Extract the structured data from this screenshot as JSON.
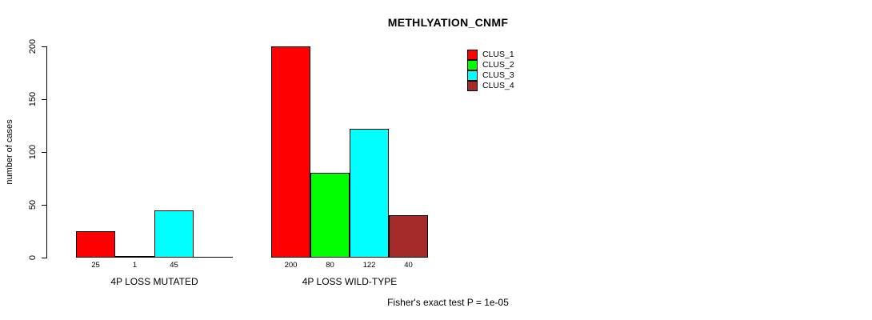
{
  "chart_data": {
    "type": "bar",
    "title": "METHLYATION_CNMF",
    "ylabel": "number of cases",
    "ylim": [
      0,
      200
    ],
    "yticks": [
      0,
      50,
      100,
      150,
      200
    ],
    "grid": false,
    "legend_position": "top-right",
    "series_colors": [
      "#FF0000",
      "#00FF00",
      "#00FFFF",
      "#A52A2A"
    ],
    "groups": [
      {
        "label": "4P LOSS MUTATED",
        "values": [
          25,
          1,
          45,
          0
        ],
        "bar_labels": [
          "25",
          "1",
          "45",
          ""
        ]
      },
      {
        "label": "4P LOSS WILD-TYPE",
        "values": [
          200,
          80,
          122,
          40
        ],
        "bar_labels": [
          "200",
          "80",
          "122",
          "40"
        ]
      }
    ],
    "legend": [
      {
        "label": "CLUS_1",
        "color": "#FF0000"
      },
      {
        "label": "CLUS_2",
        "color": "#00FF00"
      },
      {
        "label": "CLUS_3",
        "color": "#00FFFF"
      },
      {
        "label": "CLUS_4",
        "color": "#A52A2A"
      }
    ],
    "footnote": "Fisher's exact test P = 1e-05"
  }
}
